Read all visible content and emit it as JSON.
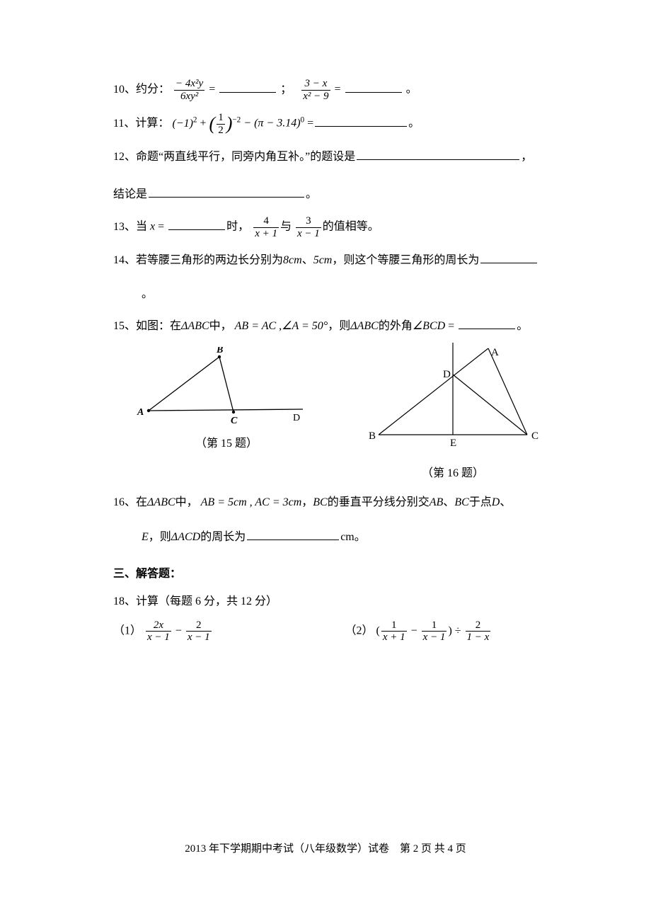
{
  "q10": {
    "num": "10、",
    "label": "约分：",
    "frac1_num": "− 4x²y",
    "frac1_den": "6xy²",
    "eq": " = ",
    "semicolon": "；",
    "frac2_num": "3 − x",
    "frac2_den": "x² − 9",
    "period": "。"
  },
  "q11": {
    "num": "11、",
    "label": "计算：",
    "expr_a": "(−1)",
    "expr_a_sup": "2",
    "plus": " + ",
    "paren_frac_num": "1",
    "paren_frac_den": "2",
    "paren_sup": "−2",
    "minus": " − (π − 3.14)",
    "zero_sup": "0",
    "eq": "  =",
    "period": "。"
  },
  "q12": {
    "num": "12、",
    "text1": "命题“两直线平行，同旁内角互补。”的题设是",
    "comma": "，",
    "line2_label": "结论是",
    "period": "。"
  },
  "q13": {
    "num": "13、",
    "text1": "当",
    "x": " x ",
    "eq": "= ",
    "text2": "时，",
    "f1_num": "4",
    "f1_den": "x + 1",
    "and": "与",
    "f2_num": "3",
    "f2_den": "x − 1",
    "text3": "的值相等。"
  },
  "q14": {
    "num": "14、",
    "text": "若等腰三角形的两边长分别为",
    "v1": "8cm",
    "dot": "、",
    "v2": "5cm",
    "text2": "，则这个等腰三角形的周长为",
    "period": "。"
  },
  "q15": {
    "num": "15、",
    "text1": "如图：在",
    "tri": "ΔABC",
    "text2": "中，",
    "eq1": " AB = AC ,",
    "ang": "∠A = 50°",
    "text3": "，则",
    "tri2": "ΔABC",
    "text4": "的外角",
    "ang2": "∠BCD",
    "eq2": " = ",
    "period": "。"
  },
  "fig15": {
    "labels": {
      "A": "A",
      "B": "B",
      "C": "C",
      "D": "D"
    },
    "caption": "（第 15 题）",
    "stroke": "#000000",
    "A": [
      20,
      90
    ],
    "B": [
      120,
      14
    ],
    "C": [
      140,
      92
    ],
    "line_end": [
      238,
      88
    ],
    "Dpos": [
      230,
      88
    ]
  },
  "fig16": {
    "labels": {
      "A": "A",
      "B": "B",
      "C": "C",
      "D": "D",
      "E": "E"
    },
    "caption": "（第 16 题）",
    "stroke": "#000000",
    "B": [
      20,
      130
    ],
    "C": [
      230,
      130
    ],
    "A": [
      175,
      8
    ],
    "E": [
      125,
      130
    ],
    "vert_top": [
      125,
      0
    ],
    "D": [
      125,
      45
    ]
  },
  "q16": {
    "num": "16、",
    "text1": "在",
    "tri": "ΔABC",
    "text2": "中，",
    "eq1": " AB = 5cm , AC = 3cm",
    "text3": "，",
    "bc": "BC",
    "text4": "的垂直平分线分别交",
    "ab": "AB",
    "dot": "、",
    "bc2": "BC",
    "text5": "于点",
    "d": "D",
    "dot2": "、",
    "line2_e": "E",
    "line2_text1": "，则",
    "tri2": "ΔACD",
    "line2_text2": "的周长为",
    "unit": "cm",
    "period": "。"
  },
  "section3": "三、解答题：",
  "q18": {
    "num": "18、",
    "text": "计算（每题 6 分，共 12 分）",
    "p1_label": "（1）",
    "p1_f1_num": "2x",
    "p1_f1_den": "x − 1",
    "p1_minus": " − ",
    "p1_f2_num": "2",
    "p1_f2_den": "x − 1",
    "p2_label": "（2）",
    "p2_open": " (",
    "p2_f1_num": "1",
    "p2_f1_den": "x + 1",
    "p2_minus": " − ",
    "p2_f2_num": "1",
    "p2_f2_den": "x − 1",
    "p2_close_div": ") ÷ ",
    "p2_f3_num": "2",
    "p2_f3_den": "1 − x"
  },
  "footer": "2013 年下学期期中考试（八年级数学）试卷　第 2 页 共 4 页"
}
